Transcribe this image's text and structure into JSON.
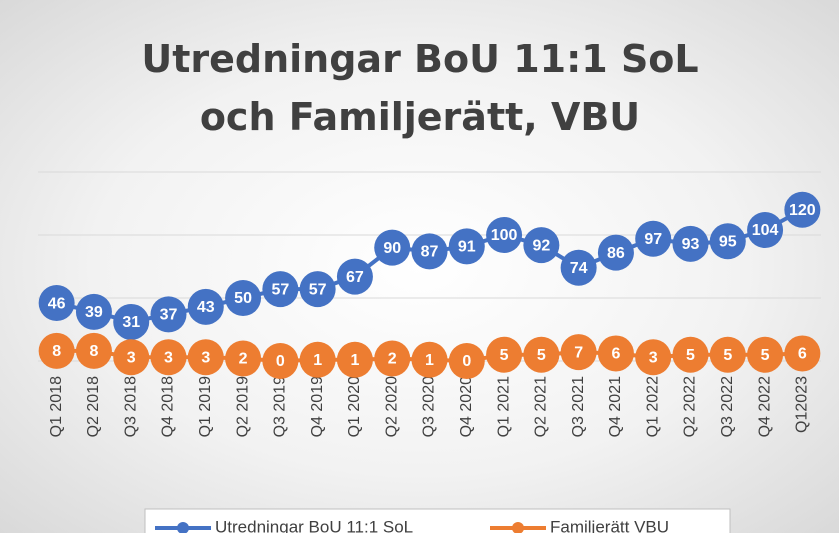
{
  "chart_data": {
    "type": "line",
    "title": "Utredningar BoU 11:1 SoL och Familjerätt, VBU",
    "categories": [
      "Q1 2018",
      "Q2 2018",
      "Q3 2018",
      "Q4 2018",
      "Q1 2019",
      "Q2 2019",
      "Q3 2019",
      "Q4 2019",
      "Q1 2020",
      "Q2 2020",
      "Q3 2020",
      "Q4 2020",
      "Q1 2021",
      "Q2 2021",
      "Q3 2021",
      "Q4 2021",
      "Q1 2022",
      "Q2 2022",
      "Q3 2022",
      "Q4 2022",
      "Q12023"
    ],
    "series": [
      {
        "name": "Utredningar BoU 11:1 SoL",
        "color": "#4472c4",
        "values": [
          46,
          39,
          31,
          37,
          43,
          50,
          57,
          57,
          67,
          90,
          87,
          91,
          100,
          92,
          74,
          86,
          97,
          93,
          95,
          104,
          120
        ]
      },
      {
        "name": "Familjerätt VBU",
        "color": "#ed7d31",
        "values": [
          8,
          8,
          3,
          3,
          3,
          2,
          0,
          1,
          1,
          2,
          1,
          0,
          5,
          5,
          7,
          6,
          3,
          5,
          5,
          5,
          6
        ]
      }
    ],
    "ylim": [
      0,
      150
    ],
    "yticks": [
      0,
      50,
      100,
      150
    ],
    "grid": true,
    "legend": "bottom"
  }
}
